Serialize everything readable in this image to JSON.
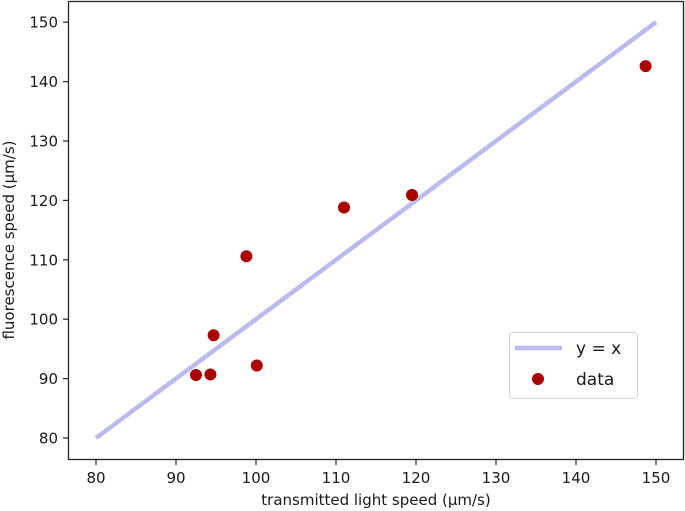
{
  "chart_data": {
    "type": "scatter",
    "title": "",
    "xlabel": "transmitted light speed (μm/s)",
    "ylabel": "fluorescence speed (μm/s)",
    "xlim": [
      76.5,
      153.5
    ],
    "ylim": [
      76.5,
      153.5
    ],
    "xticks": [
      80,
      90,
      100,
      110,
      120,
      130,
      140,
      150
    ],
    "yticks": [
      80,
      90,
      100,
      110,
      120,
      130,
      140,
      150
    ],
    "grid": false,
    "legend_position": "lower right",
    "series": [
      {
        "name": "y = x",
        "kind": "line",
        "color": "#bbbbee",
        "x": [
          80,
          150
        ],
        "y": [
          80,
          150
        ]
      },
      {
        "name": "data",
        "kind": "scatter",
        "color": "#aa0000",
        "x": [
          92.5,
          94.3,
          94.7,
          98.8,
          100.1,
          111.0,
          119.5,
          148.7
        ],
        "y": [
          90.6,
          90.7,
          97.3,
          110.6,
          92.2,
          118.8,
          120.9,
          142.6
        ]
      }
    ]
  },
  "legend": {
    "items": [
      {
        "label": "y = x"
      },
      {
        "label": "data"
      }
    ]
  }
}
